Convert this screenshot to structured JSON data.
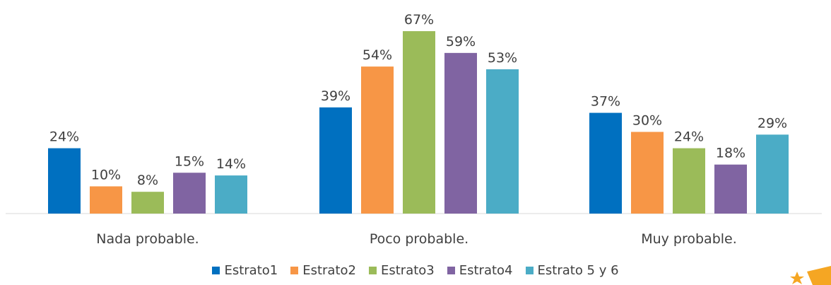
{
  "chart_data": {
    "type": "bar",
    "categories": [
      "Nada probable.",
      "Poco probable.",
      "Muy probable."
    ],
    "series": [
      {
        "name": "Estrato1",
        "values": [
          24,
          39,
          37
        ],
        "labels": [
          "24%",
          "39%",
          "37%"
        ],
        "color": "#0070C0"
      },
      {
        "name": "Estrato2",
        "values": [
          10,
          54,
          30
        ],
        "labels": [
          "10%",
          "54%",
          "30%"
        ],
        "color": "#F79646"
      },
      {
        "name": "Estrato3",
        "values": [
          8,
          67,
          24
        ],
        "labels": [
          "8%",
          "67%",
          "24%"
        ],
        "color": "#9BBB59"
      },
      {
        "name": "Estrato4",
        "values": [
          15,
          59,
          18
        ],
        "labels": [
          "15%",
          "59%",
          "18%"
        ],
        "color": "#8064A2"
      },
      {
        "name": "Estrato 5 y 6",
        "values": [
          14,
          53,
          29
        ],
        "labels": [
          "14%",
          "53%",
          "29%"
        ],
        "color": "#4BACC6"
      }
    ],
    "value_unit": "%",
    "legend_position": "bottom",
    "grid": false
  },
  "decoration": {
    "icon": "star-logo-icon",
    "color": "#F5A623"
  }
}
